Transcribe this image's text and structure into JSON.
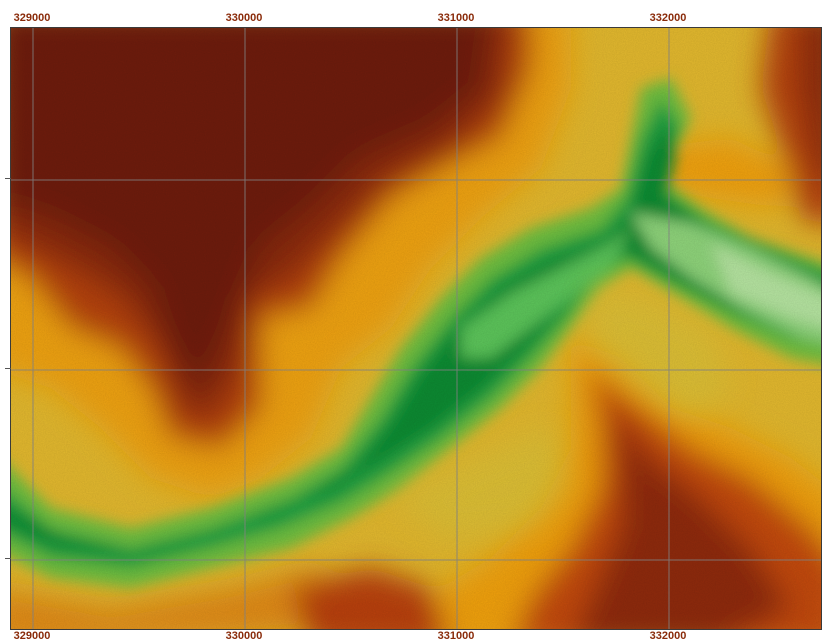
{
  "map": {
    "x_ticks": [
      {
        "label": "329000",
        "easting": 329000
      },
      {
        "label": "330000",
        "easting": 330000
      },
      {
        "label": "331000",
        "easting": 331000
      },
      {
        "label": "332000",
        "easting": 332000
      }
    ],
    "y_gridlines": 3,
    "colormap": {
      "low": "#7fd86a",
      "mid_low": "#1e9e3a",
      "mid": "#e6c23a",
      "mid_high": "#f2a20a",
      "high": "#c8400a",
      "highest": "#6e1e08"
    },
    "grid_color": "#808080",
    "label_color": "#8a2b0a"
  }
}
